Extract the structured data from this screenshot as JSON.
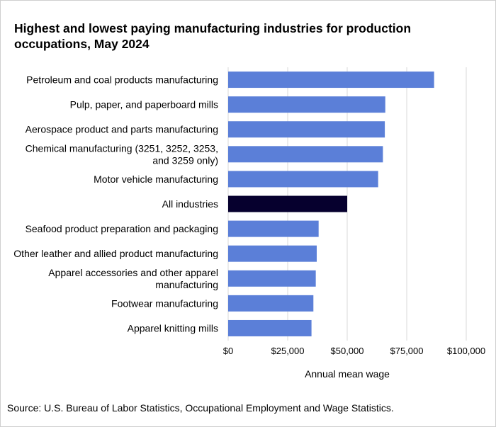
{
  "chart_data": {
    "type": "bar",
    "orientation": "horizontal",
    "title": "Highest and lowest paying manufacturing industries for production occupations, May 2024",
    "xlabel": "Annual mean wage",
    "ylabel": "",
    "xlim": [
      0,
      100000
    ],
    "ticks": [
      {
        "value": 0,
        "label": "$0"
      },
      {
        "value": 25000,
        "label": "$25,000"
      },
      {
        "value": 50000,
        "label": "$50,000"
      },
      {
        "value": 75000,
        "label": "$75,000"
      },
      {
        "value": 100000,
        "label": "$100,000"
      }
    ],
    "grid": true,
    "categories": [
      {
        "lines": [
          "Petroleum and coal products manufacturing"
        ],
        "value": 86500,
        "highlight": false
      },
      {
        "lines": [
          "Pulp, paper, and paperboard mills"
        ],
        "value": 66000,
        "highlight": false
      },
      {
        "lines": [
          "Aerospace product and parts manufacturing"
        ],
        "value": 65800,
        "highlight": false
      },
      {
        "lines": [
          "Chemical manufacturing (3251, 3252, 3253,",
          "and 3259 only)"
        ],
        "value": 65000,
        "highlight": false
      },
      {
        "lines": [
          "Motor vehicle manufacturing"
        ],
        "value": 63000,
        "highlight": false
      },
      {
        "lines": [
          "All industries"
        ],
        "value": 50000,
        "highlight": true
      },
      {
        "lines": [
          "Seafood product preparation and packaging"
        ],
        "value": 38000,
        "highlight": false
      },
      {
        "lines": [
          "Other leather and allied product manufacturing"
        ],
        "value": 37200,
        "highlight": false
      },
      {
        "lines": [
          "Apparel accessories and other apparel",
          "manufacturing"
        ],
        "value": 36800,
        "highlight": false
      },
      {
        "lines": [
          "Footwear manufacturing"
        ],
        "value": 35800,
        "highlight": false
      },
      {
        "lines": [
          "Apparel knitting mills"
        ],
        "value": 35000,
        "highlight": false
      }
    ],
    "colors": {
      "bar": "#5b7fd8",
      "highlight": "#06002e",
      "grid": "#d9d9d9"
    }
  },
  "source": "Source: U.S. Bureau of Labor Statistics, Occupational Employment and Wage Statistics."
}
